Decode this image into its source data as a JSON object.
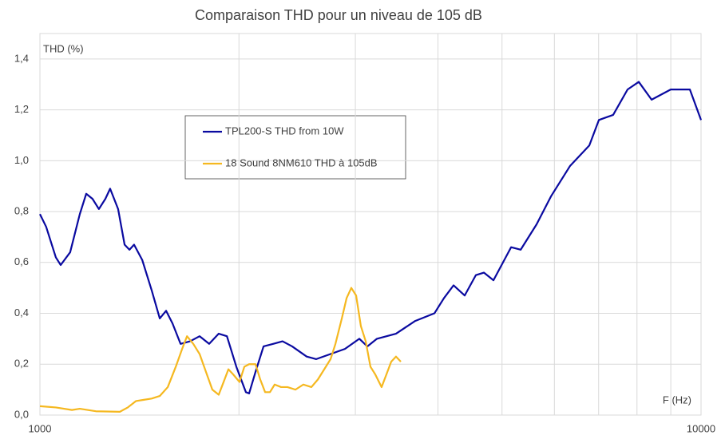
{
  "chart_data": {
    "type": "line",
    "title": "Comparaison THD pour un niveau de 105 dB",
    "y_label": "THD (%)",
    "x_label": "F (Hz)",
    "xscale": "log",
    "xlim": [
      1000,
      10000
    ],
    "xticks": [
      1000,
      10000
    ],
    "x_minor_grid": [
      2000,
      3000,
      4000,
      5000,
      6000,
      7000,
      8000,
      9000
    ],
    "ylim": [
      0,
      1.5
    ],
    "yticks": [
      {
        "value": 0,
        "label": "0,0"
      },
      {
        "value": 0.2,
        "label": "0,2"
      },
      {
        "value": 0.4,
        "label": "0,4"
      },
      {
        "value": 0.6,
        "label": "0,6"
      },
      {
        "value": 0.8,
        "label": "0,8"
      },
      {
        "value": 1.0,
        "label": "1,0"
      },
      {
        "value": 1.2,
        "label": "1,2"
      },
      {
        "value": 1.4,
        "label": "1,4"
      }
    ],
    "grid": true,
    "legend_position": "upper-left",
    "series": [
      {
        "name": "TPL200-S THD from 10W",
        "color": "#0a0aa0",
        "x": [
          1000,
          1022,
          1057,
          1075,
          1111,
          1149,
          1175,
          1201,
          1228,
          1256,
          1277,
          1313,
          1343,
          1366,
          1388,
          1428,
          1476,
          1518,
          1552,
          1587,
          1632,
          1687,
          1744,
          1803,
          1864,
          1918,
          1982,
          2049,
          2072,
          2119,
          2179,
          2253,
          2328,
          2407,
          2532,
          2618,
          2752,
          2893,
          3042,
          3128,
          3234,
          3456,
          3695,
          3951,
          4085,
          4223,
          4390,
          4564,
          4694,
          4853,
          5161,
          5335,
          5640,
          5930,
          6339,
          6776,
          7006,
          7363,
          7742,
          8050,
          8418,
          8998,
          9303,
          9618,
          10000
        ],
        "values": [
          0.79,
          0.74,
          0.62,
          0.59,
          0.64,
          0.79,
          0.87,
          0.85,
          0.81,
          0.85,
          0.89,
          0.81,
          0.67,
          0.65,
          0.67,
          0.61,
          0.49,
          0.38,
          0.41,
          0.36,
          0.28,
          0.29,
          0.31,
          0.28,
          0.32,
          0.31,
          0.19,
          0.09,
          0.085,
          0.17,
          0.27,
          0.28,
          0.29,
          0.27,
          0.23,
          0.22,
          0.24,
          0.26,
          0.3,
          0.27,
          0.3,
          0.32,
          0.37,
          0.4,
          0.46,
          0.51,
          0.47,
          0.55,
          0.56,
          0.53,
          0.66,
          0.65,
          0.75,
          0.86,
          0.98,
          1.06,
          1.16,
          1.18,
          1.28,
          1.31,
          1.24,
          1.28,
          1.28,
          1.28,
          1.16
        ]
      },
      {
        "name": "18 Sound 8NM610 THD à 105dB",
        "color": "#f5b820",
        "x": [
          1000,
          1057,
          1118,
          1149,
          1215,
          1321,
          1358,
          1397,
          1436,
          1476,
          1518,
          1561,
          1605,
          1641,
          1669,
          1706,
          1744,
          1783,
          1823,
          1864,
          1896,
          1928,
          1960,
          2004,
          2038,
          2072,
          2119,
          2154,
          2191,
          2228,
          2265,
          2316,
          2368,
          2435,
          2503,
          2574,
          2633,
          2692,
          2752,
          2799,
          2862,
          2910,
          2958,
          3008,
          3058,
          3110,
          3162,
          3215,
          3287,
          3343,
          3399,
          3456,
          3515
        ],
        "values": [
          0.035,
          0.03,
          0.02,
          0.025,
          0.015,
          0.013,
          0.03,
          0.055,
          0.06,
          0.065,
          0.075,
          0.11,
          0.19,
          0.26,
          0.31,
          0.28,
          0.24,
          0.17,
          0.1,
          0.08,
          0.13,
          0.18,
          0.16,
          0.13,
          0.19,
          0.2,
          0.2,
          0.14,
          0.09,
          0.09,
          0.12,
          0.11,
          0.11,
          0.1,
          0.12,
          0.11,
          0.14,
          0.18,
          0.22,
          0.28,
          0.38,
          0.46,
          0.5,
          0.47,
          0.35,
          0.29,
          0.19,
          0.16,
          0.11,
          0.16,
          0.21,
          0.23,
          0.21
        ]
      }
    ]
  }
}
